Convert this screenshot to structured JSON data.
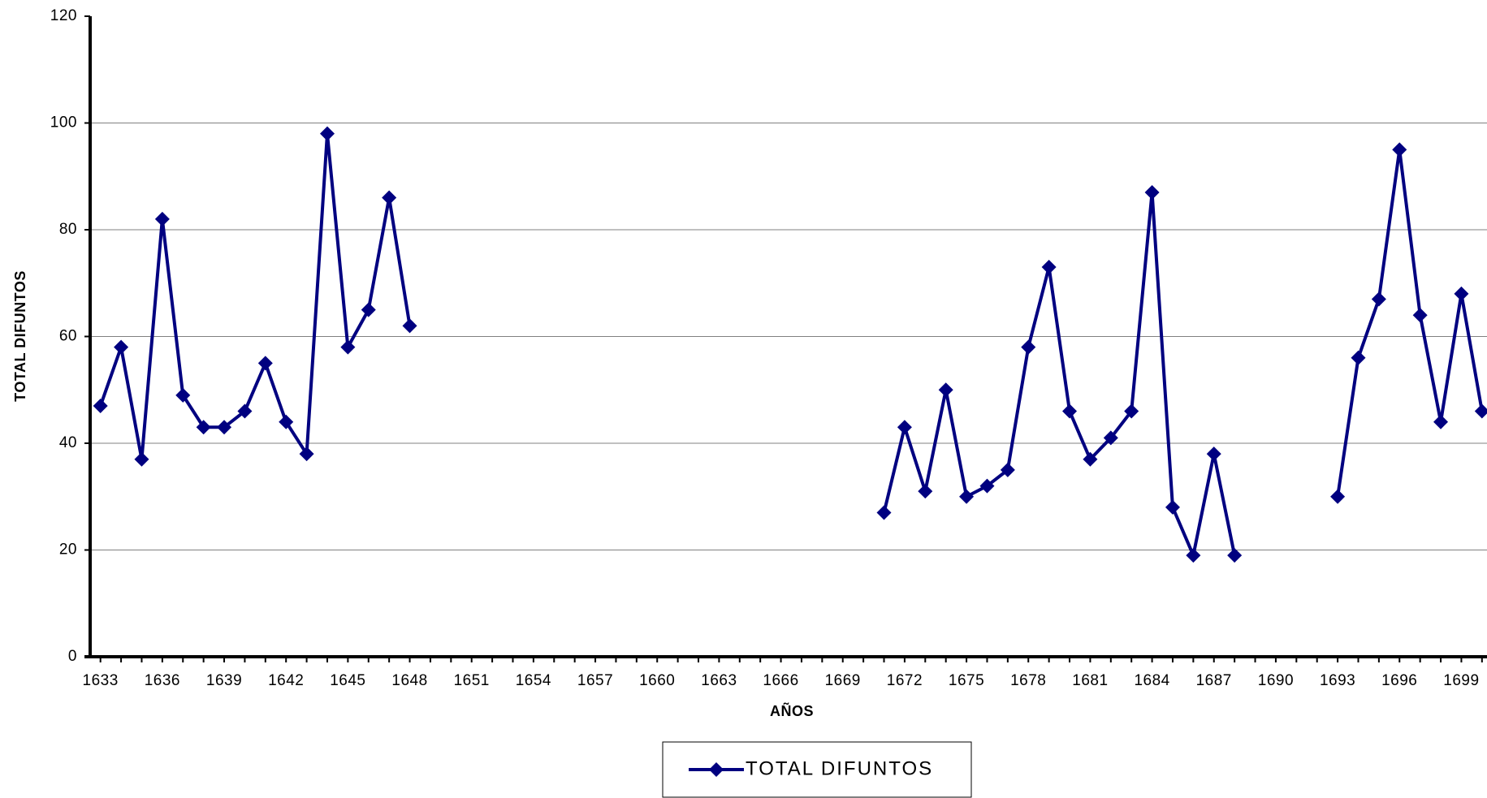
{
  "chart_data": {
    "type": "line",
    "x": [
      1633,
      1634,
      1635,
      1636,
      1637,
      1638,
      1639,
      1640,
      1641,
      1642,
      1643,
      1644,
      1645,
      1646,
      1647,
      1648,
      1649,
      1650,
      1651,
      1652,
      1653,
      1654,
      1655,
      1656,
      1657,
      1658,
      1659,
      1660,
      1661,
      1662,
      1663,
      1664,
      1665,
      1666,
      1667,
      1668,
      1669,
      1670,
      1671,
      1672,
      1673,
      1674,
      1675,
      1676,
      1677,
      1678,
      1679,
      1680,
      1681,
      1682,
      1683,
      1684,
      1685,
      1686,
      1687,
      1688,
      1689,
      1690,
      1691,
      1692,
      1693,
      1694,
      1695,
      1696,
      1697,
      1698,
      1699,
      1700
    ],
    "series": [
      {
        "name": "TOTAL DIFUNTOS",
        "color": "#000080",
        "values": [
          47,
          58,
          37,
          82,
          49,
          43,
          43,
          46,
          55,
          44,
          38,
          98,
          58,
          65,
          86,
          62,
          null,
          null,
          null,
          null,
          null,
          null,
          null,
          null,
          null,
          null,
          null,
          null,
          null,
          null,
          null,
          null,
          null,
          null,
          null,
          null,
          null,
          null,
          27,
          43,
          31,
          50,
          30,
          32,
          35,
          58,
          73,
          46,
          37,
          41,
          46,
          87,
          28,
          19,
          38,
          19,
          null,
          null,
          null,
          null,
          30,
          56,
          67,
          95,
          64,
          44,
          68,
          46
        ]
      }
    ],
    "xlabel": "AÑOS",
    "ylabel": "TOTAL DIFUNTOS",
    "xlim": [
      1632.5,
      1700.5
    ],
    "xticks": [
      1633,
      1636,
      1639,
      1642,
      1645,
      1648,
      1651,
      1654,
      1657,
      1660,
      1663,
      1666,
      1669,
      1672,
      1675,
      1678,
      1681,
      1684,
      1687,
      1690,
      1693,
      1696,
      1699
    ],
    "ylim": [
      0,
      120
    ],
    "yticks": [
      0,
      20,
      40,
      60,
      80,
      100,
      120
    ],
    "grid": true,
    "legend": "bottom"
  }
}
